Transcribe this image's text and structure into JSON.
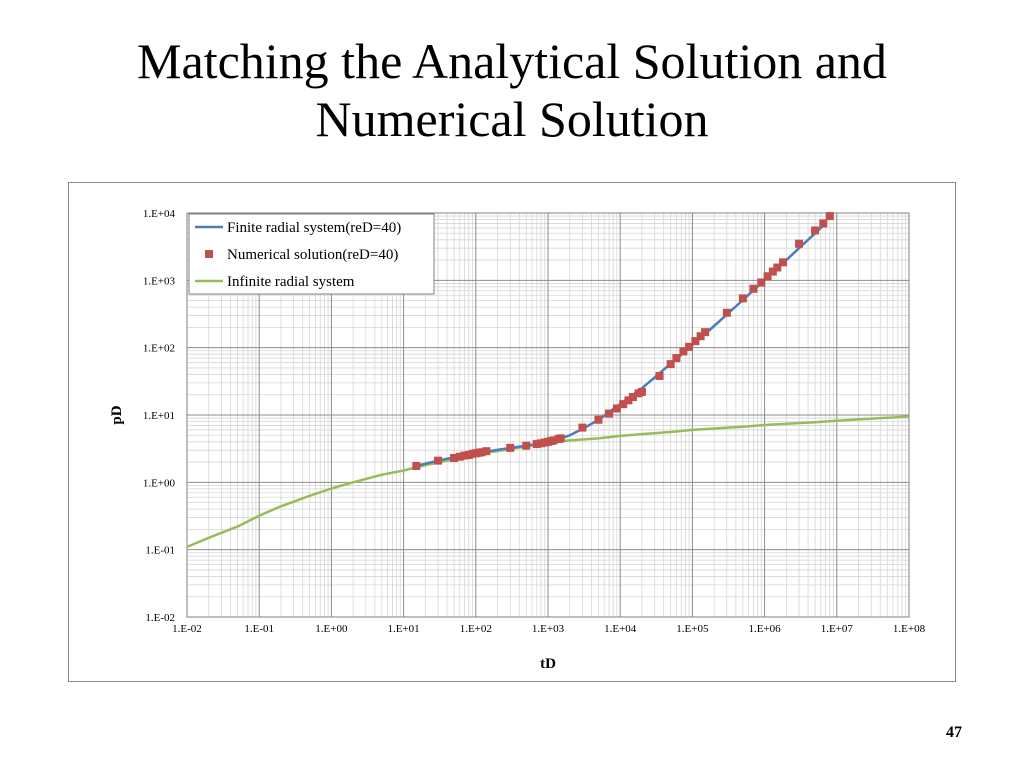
{
  "slide": {
    "title_line1": "Matching the Analytical Solution and",
    "title_line2": "Numerical Solution",
    "page_number": "47"
  },
  "chart_data": {
    "type": "line",
    "xlabel": "tD",
    "ylabel": "pD",
    "x_scale": "log",
    "y_scale": "log",
    "xlim": [
      0.01,
      100000000
    ],
    "ylim": [
      0.01,
      10000
    ],
    "x_ticks": [
      "1.E-02",
      "1.E-01",
      "1.E+00",
      "1.E+01",
      "1.E+02",
      "1.E+03",
      "1.E+04",
      "1.E+05",
      "1.E+06",
      "1.E+07",
      "1.E+08"
    ],
    "y_ticks": [
      "1.E-02",
      "1.E-01",
      "1.E+00",
      "1.E+01",
      "1.E+02",
      "1.E+03",
      "1.E+04"
    ],
    "grid": "major and minor",
    "legend_position": "top-left",
    "series": [
      {
        "name": "Finite radial system(reD=40)",
        "color": "#4a7ebb",
        "style": "line",
        "x": [
          15,
          30,
          50,
          100,
          150,
          300,
          500,
          800,
          1000,
          1500,
          2000,
          3000,
          5000,
          7000,
          10000,
          15000,
          20000,
          30000,
          50000,
          70000,
          100000,
          150000,
          200000,
          300000,
          500000,
          700000,
          1000000,
          1500000,
          2000000,
          3000000,
          5000000,
          7000000
        ],
        "y": [
          1.75,
          2.1,
          2.35,
          2.7,
          2.9,
          3.25,
          3.5,
          3.8,
          4.0,
          4.5,
          5.0,
          6.2,
          8.5,
          11,
          14.5,
          20,
          25,
          36,
          58,
          78,
          110,
          160,
          210,
          310,
          510,
          710,
          1000,
          1500,
          2000,
          3000,
          5000,
          7000
        ]
      },
      {
        "name": "Numerical solution(reD=40)",
        "color": "#c0504d",
        "style": "markers",
        "x": [
          15,
          30,
          50,
          60,
          70,
          80,
          90,
          100,
          110,
          120,
          140,
          300,
          500,
          700,
          800,
          900,
          1000,
          1100,
          1200,
          1400,
          1500,
          3000,
          5000,
          7000,
          9000,
          11000,
          13000,
          15000,
          18000,
          20000,
          35000,
          50000,
          60000,
          75000,
          90000,
          110000,
          130000,
          150000,
          300000,
          500000,
          700000,
          900000,
          1100000,
          1300000,
          1500000,
          1800000,
          3000000,
          5000000,
          6500000,
          8000000
        ],
        "y": [
          1.75,
          2.1,
          2.3,
          2.4,
          2.5,
          2.55,
          2.65,
          2.7,
          2.75,
          2.8,
          2.9,
          3.25,
          3.5,
          3.7,
          3.8,
          3.9,
          4.0,
          4.1,
          4.2,
          4.4,
          4.5,
          6.5,
          8.5,
          10.5,
          12.5,
          14.5,
          16.5,
          18.5,
          21,
          22,
          38,
          57,
          70,
          88,
          103,
          125,
          148,
          170,
          330,
          540,
          750,
          930,
          1150,
          1350,
          1550,
          1850,
          3500,
          5500,
          7000,
          9000
        ]
      },
      {
        "name": "Infinite radial system",
        "color": "#9bbb59",
        "style": "line",
        "x": [
          0.01,
          0.02,
          0.05,
          0.1,
          0.2,
          0.5,
          1,
          2,
          5,
          10,
          20,
          50,
          100,
          200,
          500,
          1000,
          2000,
          5000,
          10000,
          20000,
          50000,
          100000,
          200000,
          500000,
          1000000,
          2000000,
          5000000,
          10000000,
          20000000,
          50000000,
          100000000
        ],
        "y": [
          0.11,
          0.15,
          0.22,
          0.32,
          0.44,
          0.63,
          0.81,
          1.0,
          1.3,
          1.5,
          1.8,
          2.2,
          2.7,
          2.9,
          3.4,
          3.9,
          4.2,
          4.5,
          4.9,
          5.2,
          5.6,
          6.0,
          6.3,
          6.7,
          7.1,
          7.4,
          7.8,
          8.2,
          8.6,
          9.1,
          9.5
        ]
      }
    ]
  }
}
